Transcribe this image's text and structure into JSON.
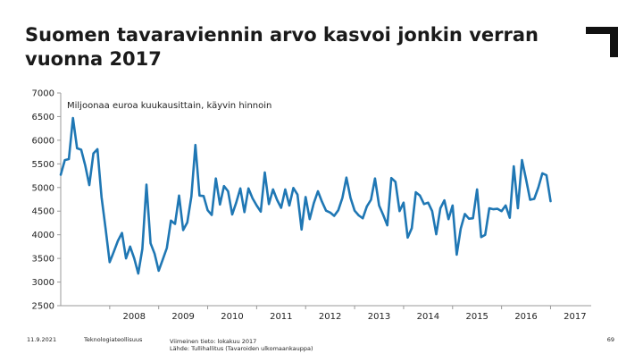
{
  "slide": {
    "title": "Suomen tavaraviennin arvo kasvoi jonkin verran vuonna 2017",
    "footer_date": "11.9.2021",
    "footer_org": "Teknologiateollisuus",
    "footer_updated": "Viimeinen tieto: lokakuu 2017",
    "footer_source": "Lähde: Tullihallitus (Tavaroiden ulkomaankauppa)",
    "page_number": "69"
  },
  "colors": {
    "line": "#1f77b4",
    "axis": "#999999",
    "text": "#222222",
    "logo": "#111111"
  },
  "logo": {
    "icon": "corner-bracket-logo-icon"
  },
  "chart_data": {
    "type": "line",
    "subtitle": "Miljoonaa euroa kuukausittain, käyvin hinnoin",
    "ylim": [
      2500,
      7000
    ],
    "yticks": [
      2500,
      3000,
      3500,
      4000,
      4500,
      5000,
      5500,
      6000,
      6500,
      7000
    ],
    "xlim": [
      2007.0,
      2017.83
    ],
    "x_ticks": [
      "2008",
      "2009",
      "2010",
      "2011",
      "2012",
      "2013",
      "2014",
      "2015",
      "2016",
      "2017"
    ],
    "grid": false,
    "series": [
      {
        "x_start": "2007-01",
        "frequency": "monthly",
        "values": [
          5270,
          5580,
          5600,
          6470,
          5830,
          5800,
          5470,
          5050,
          5720,
          5810,
          4800,
          4120,
          3420,
          3640,
          3870,
          4040,
          3500,
          3750,
          3500,
          3180,
          3700,
          5060,
          3820,
          3600,
          3240,
          3480,
          3720,
          4300,
          4230,
          4830,
          4100,
          4260,
          4810,
          5900,
          4830,
          4820,
          4520,
          4420,
          5190,
          4640,
          5030,
          4920,
          4430,
          4680,
          4980,
          4480,
          4980,
          4770,
          4620,
          4490,
          5320,
          4650,
          4960,
          4740,
          4570,
          4960,
          4620,
          4990,
          4850,
          4110,
          4800,
          4330,
          4670,
          4920,
          4700,
          4510,
          4470,
          4400,
          4520,
          4780,
          5210,
          4780,
          4510,
          4410,
          4350,
          4600,
          4740,
          5190,
          4620,
          4420,
          4200,
          5200,
          5120,
          4500,
          4680,
          3940,
          4140,
          4900,
          4830,
          4650,
          4680,
          4500,
          4010,
          4560,
          4730,
          4330,
          4620,
          3580,
          4130,
          4440,
          4340,
          4350,
          4960,
          3950,
          4000,
          4560,
          4540,
          4550,
          4500,
          4620,
          4360,
          5450,
          4560,
          5580,
          5170,
          4740,
          4760,
          5000,
          5300,
          5260,
          4710
        ]
      }
    ]
  }
}
